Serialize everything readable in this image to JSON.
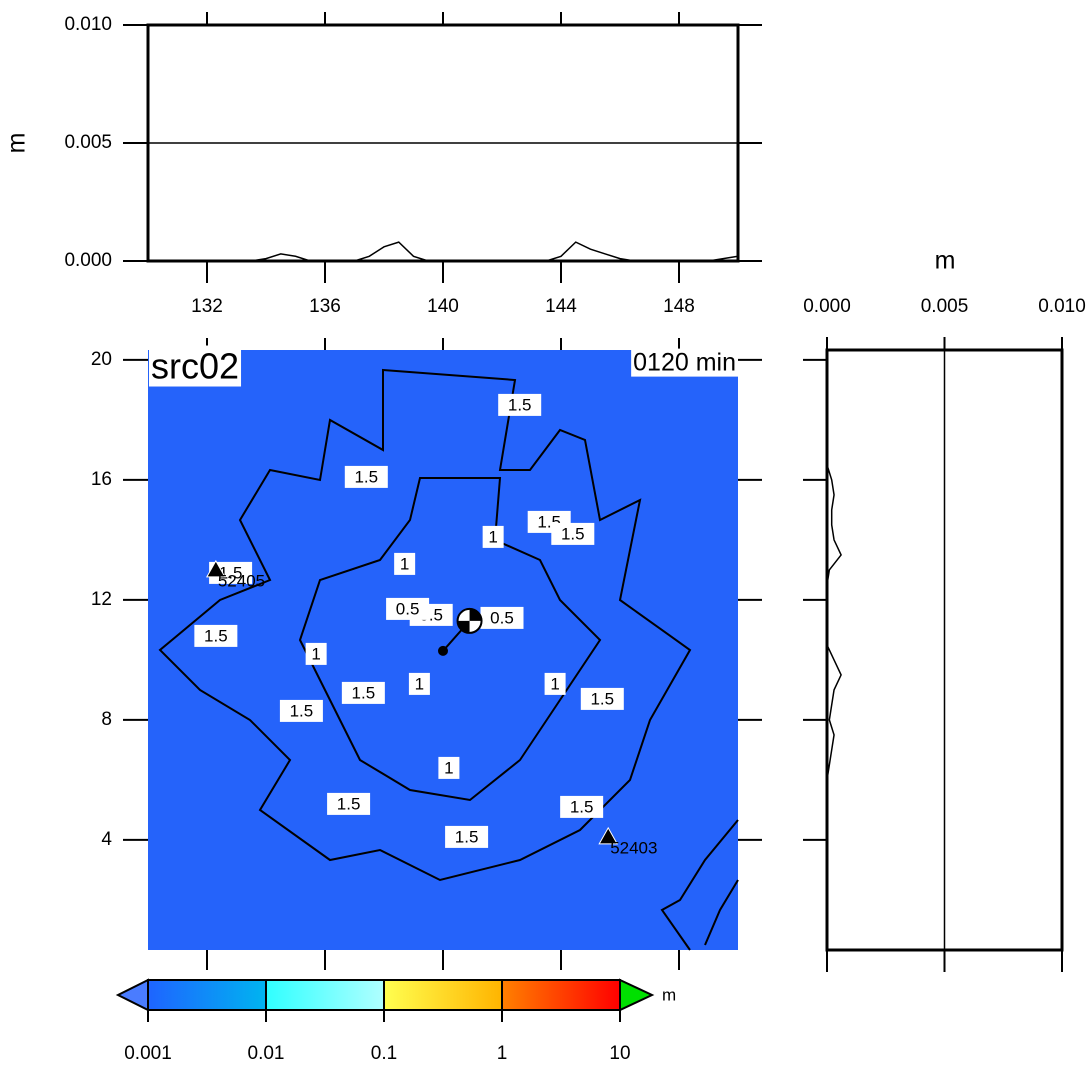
{
  "chart_data": [
    {
      "type": "line",
      "ylabel": "m",
      "xlim": [
        130,
        150
      ],
      "ylim": [
        0,
        0.01
      ],
      "xticks": [
        132,
        136,
        140,
        144,
        148
      ],
      "yticks": [
        {
          "value": 0,
          "label": "0.000"
        },
        {
          "value": 0.005,
          "label": "0.005"
        },
        {
          "value": 0.01,
          "label": "0.010"
        }
      ],
      "grid": true,
      "color": "#000000",
      "x": [
        130,
        130.5,
        131,
        131.5,
        132,
        132.5,
        133,
        133.5,
        134,
        134.5,
        135,
        135.5,
        136,
        136.5,
        137,
        137.5,
        138,
        138.5,
        139,
        139.5,
        140,
        140.5,
        141,
        141.5,
        142,
        142.5,
        143,
        143.5,
        144,
        144.5,
        145,
        145.5,
        146,
        146.5,
        147,
        147.5,
        148,
        148.5,
        149,
        149.5,
        150
      ],
      "values": [
        0,
        0,
        0,
        0,
        0,
        0,
        0,
        0,
        0.0001,
        0.0003,
        0.0002,
        0,
        0,
        0,
        0,
        0.0002,
        0.0006,
        0.0008,
        0.0002,
        0,
        0,
        0,
        0,
        0,
        0,
        0,
        0,
        0,
        0.0002,
        0.0008,
        0.0005,
        0.0003,
        0.0001,
        0,
        0,
        0,
        0,
        0,
        0,
        0.0001,
        0.0002
      ]
    },
    {
      "type": "map",
      "title": "src02",
      "annotation": "0120 min",
      "xlim": [
        130,
        150
      ],
      "ylim": [
        0.33,
        20.33
      ],
      "yticks": [
        4,
        8,
        12,
        16,
        20
      ],
      "background": "#2563fa",
      "contour_labels": {
        "x": [
          142.6,
          137.4,
          143.6,
          144.4,
          141.7,
          138.7,
          132.8,
          132.3,
          139.6,
          138.8,
          142.0,
          135.7,
          137.3,
          139.2,
          143.8,
          145.4,
          135.2,
          140.2,
          136.8,
          144.7,
          140.8
        ],
        "y": [
          18.5,
          16.1,
          14.6,
          14.2,
          14.1,
          13.2,
          12.9,
          10.8,
          11.5,
          11.7,
          11.4,
          10.2,
          8.9,
          9.2,
          9.2,
          8.7,
          8.3,
          6.4,
          5.2,
          5.1,
          4.1
        ],
        "values": [
          1.5,
          1.5,
          1.5,
          1.5,
          1,
          1,
          1.5,
          1.5,
          0.5,
          0.5,
          0.5,
          1,
          1.5,
          1,
          1,
          1.5,
          1.5,
          1,
          1.5,
          1.5,
          1.5
        ]
      },
      "stations": {
        "names": [
          "52405",
          "52403"
        ],
        "x": [
          132.3,
          145.6
        ],
        "y": [
          13.0,
          4.1
        ]
      },
      "epicenter": {
        "x": 140.9,
        "y": 11.3
      },
      "source": {
        "x": 140.0,
        "y": 10.3
      }
    },
    {
      "type": "line",
      "orientation": "vertical",
      "xlabel": "m",
      "xlim": [
        0,
        0.01
      ],
      "ylim": [
        0.33,
        20.33
      ],
      "xticks": [
        {
          "value": 0,
          "label": "0.000"
        },
        {
          "value": 0.005,
          "label": "0.005"
        },
        {
          "value": 0.01,
          "label": "0.010"
        }
      ],
      "grid": true,
      "color": "#000000",
      "y": [
        1,
        1.5,
        2,
        2.5,
        3,
        3.5,
        4,
        4.5,
        5,
        5.5,
        6,
        6.5,
        7,
        7.5,
        8,
        8.5,
        9,
        9.5,
        10,
        10.5,
        11,
        11.5,
        12,
        12.5,
        13,
        13.5,
        14,
        14.5,
        15,
        15.5,
        16,
        16.5,
        17,
        17.5,
        18,
        18.5,
        19,
        19.5,
        20
      ],
      "values": [
        0,
        0,
        0,
        0,
        0,
        0,
        0,
        0,
        0,
        0,
        0,
        0.0001,
        0.0002,
        0.0003,
        0.0001,
        0.0002,
        0.0003,
        0.0006,
        0.0003,
        0,
        0,
        0,
        0,
        0,
        0.0001,
        0.0006,
        0.0003,
        0.0002,
        0.0002,
        0.0003,
        0.0002,
        0,
        0,
        0,
        0,
        0,
        0,
        0,
        0
      ]
    },
    {
      "type": "colorbar",
      "label": "m",
      "scale": "log",
      "xlim": [
        0.001,
        10
      ],
      "xticks": [
        0.001,
        0.01,
        0.1,
        1,
        10
      ],
      "segments": [
        [
          "#1e64ff",
          "#00b4f0"
        ],
        [
          "#30ffff",
          "#b0ffff"
        ],
        [
          "#ffff50",
          "#ffb400"
        ],
        [
          "#ff8000",
          "#ff0000"
        ]
      ],
      "extend_colors": [
        "#4a7cff",
        "#00e000"
      ]
    }
  ]
}
